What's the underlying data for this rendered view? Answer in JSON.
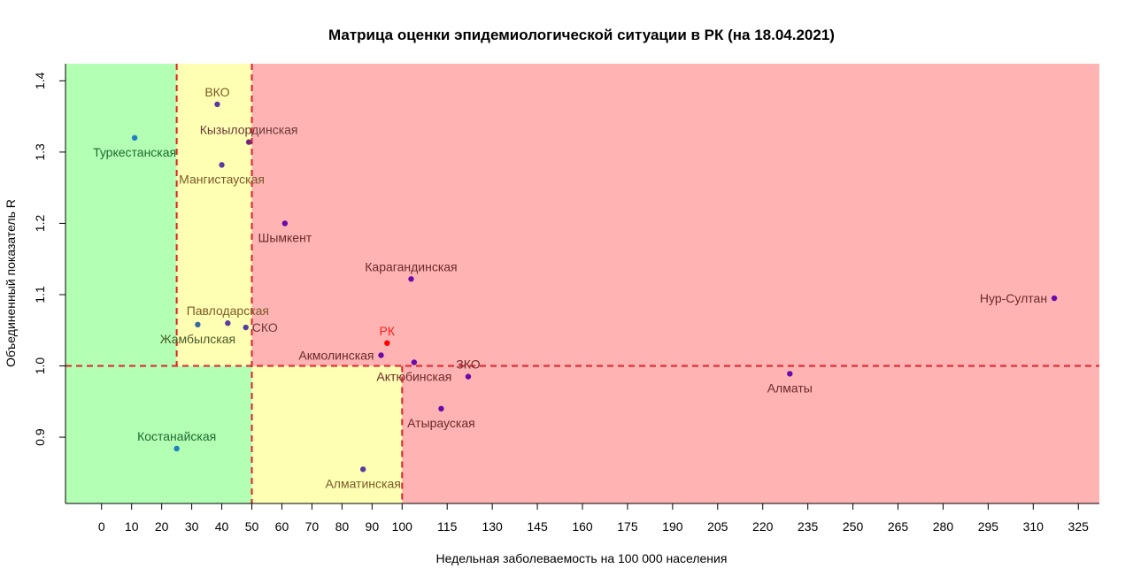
{
  "chart_data": {
    "type": "scatter",
    "title": "Матрица оценки эпидемиологической ситуации в РК (на 18.04.2021)",
    "xlabel": "Недельная заболеваемость на 100 000 населения",
    "ylabel": "Объединенный показатель R",
    "xlim": [
      -12,
      332
    ],
    "ylim": [
      0.807,
      1.424
    ],
    "x_ticks": [
      0,
      10,
      20,
      30,
      40,
      50,
      60,
      70,
      80,
      90,
      100,
      115,
      130,
      145,
      160,
      175,
      190,
      205,
      220,
      235,
      250,
      265,
      280,
      295,
      310,
      325
    ],
    "y_ticks": [
      0.9,
      1.0,
      1.1,
      1.2,
      1.3,
      1.4
    ],
    "grid": false,
    "zones": [
      {
        "x": [
          -12,
          25
        ],
        "y": [
          1.0,
          1.424
        ],
        "color": "#b3ffb3"
      },
      {
        "x": [
          -12,
          50
        ],
        "y": [
          0.807,
          1.0
        ],
        "color": "#b3ffb3"
      },
      {
        "x": [
          25,
          50
        ],
        "y": [
          1.0,
          1.424
        ],
        "color": "#ffffb3"
      },
      {
        "x": [
          50,
          100
        ],
        "y": [
          0.807,
          1.0
        ],
        "color": "#ffffb3"
      },
      {
        "x": [
          50,
          332
        ],
        "y": [
          1.0,
          1.424
        ],
        "color": "#ffb3b3"
      },
      {
        "x": [
          100,
          332
        ],
        "y": [
          0.807,
          1.0
        ],
        "color": "#ffb3b3"
      }
    ],
    "threshold_lines": [
      {
        "orientation": "vertical",
        "x": 25,
        "y": [
          1.0,
          1.424
        ]
      },
      {
        "orientation": "vertical",
        "x": 50,
        "y": [
          0.807,
          1.424
        ]
      },
      {
        "orientation": "vertical",
        "x": 100,
        "y": [
          0.807,
          1.0
        ]
      },
      {
        "orientation": "horizontal",
        "y": 1.0
      }
    ],
    "line_color": "#e0202e",
    "points": [
      {
        "name": "ВКО",
        "x": 38.5,
        "y": 1.367,
        "color": "#5a3aa0",
        "label_color": "#7a5a2a",
        "label_pos": "above"
      },
      {
        "name": "Кызылординская",
        "x": 49,
        "y": 1.314,
        "color": "#6a2a7a",
        "label_color": "#6b3a3a",
        "label_pos": "above"
      },
      {
        "name": "Туркестанская",
        "x": 11,
        "y": 1.32,
        "color": "#1f7fbf",
        "label_color": "#1d6b32",
        "label_pos": "below"
      },
      {
        "name": "Мангистауская",
        "x": 40,
        "y": 1.282,
        "color": "#5a3aa0",
        "label_color": "#7a5a2a",
        "label_pos": "below"
      },
      {
        "name": "Шымкент",
        "x": 61,
        "y": 1.2,
        "color": "#6a0aaa",
        "label_color": "#6b2a2a",
        "label_pos": "below"
      },
      {
        "name": "Карагандинская",
        "x": 103,
        "y": 1.122,
        "color": "#6a0aaa",
        "label_color": "#6b2a2a",
        "label_pos": "above"
      },
      {
        "name": "Нур-Султан",
        "x": 317,
        "y": 1.095,
        "color": "#6a0aaa",
        "label_color": "#6b2a2a",
        "label_pos": "left"
      },
      {
        "name": "Павлодарская",
        "x": 42,
        "y": 1.06,
        "color": "#5a3aa0",
        "label_color": "#7a5a2a",
        "label_pos": "above"
      },
      {
        "name": "Жамбылская",
        "x": 32,
        "y": 1.058,
        "color": "#3a6aa0",
        "label_color": "#4a5a2a",
        "label_pos": "below"
      },
      {
        "name": "СКО",
        "x": 48,
        "y": 1.054,
        "color": "#5a3aa0",
        "label_color": "#6b3a3a",
        "label_pos": "right"
      },
      {
        "name": "РК",
        "x": 95,
        "y": 1.032,
        "color": "#ff0000",
        "label_color": "#ff2020",
        "label_pos": "above"
      },
      {
        "name": "Акмолинская",
        "x": 93,
        "y": 1.015,
        "color": "#6a0aaa",
        "label_color": "#6b2a2a",
        "label_pos": "left"
      },
      {
        "name": "Актюбинская",
        "x": 104,
        "y": 1.005,
        "color": "#6a0aaa",
        "label_color": "#6b2a2a",
        "label_pos": "below"
      },
      {
        "name": "ЗКО",
        "x": 122,
        "y": 0.985,
        "color": "#6a0aaa",
        "label_color": "#6b2a2a",
        "label_pos": "above"
      },
      {
        "name": "Алматы",
        "x": 229,
        "y": 0.989,
        "color": "#6a0aaa",
        "label_color": "#6b2a2a",
        "label_pos": "below"
      },
      {
        "name": "Атырауская",
        "x": 113,
        "y": 0.94,
        "color": "#6a0aaa",
        "label_color": "#6b2a2a",
        "label_pos": "below"
      },
      {
        "name": "Костанайская",
        "x": 25,
        "y": 0.884,
        "color": "#1f7fbf",
        "label_color": "#1d6b32",
        "label_pos": "above"
      },
      {
        "name": "Алматинская",
        "x": 87,
        "y": 0.855,
        "color": "#5a3aa0",
        "label_color": "#7a5a2a",
        "label_pos": "below"
      }
    ]
  }
}
